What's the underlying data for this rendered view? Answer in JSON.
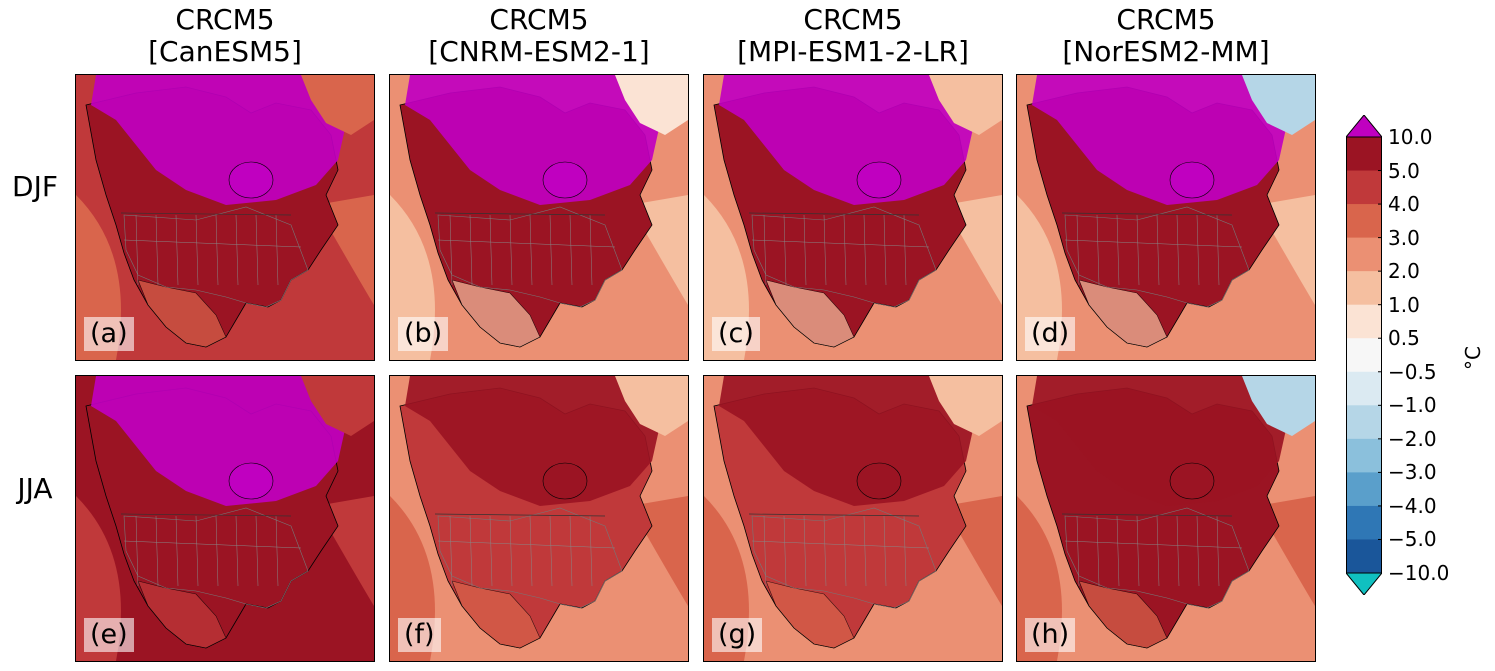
{
  "columns": [
    {
      "title_line1": "CRCM5",
      "title_line2": "[CanESM5]"
    },
    {
      "title_line1": "CRCM5",
      "title_line2": "[CNRM-ESM2-1]"
    },
    {
      "title_line1": "CRCM5",
      "title_line2": "[MPI-ESM1-2-LR]"
    },
    {
      "title_line1": "CRCM5",
      "title_line2": "[NorESM2-MM]"
    }
  ],
  "rows": [
    {
      "label": "DJF",
      "panel_labels": [
        "(a)",
        "(b)",
        "(c)",
        "(d)"
      ]
    },
    {
      "label": "JJA",
      "panel_labels": [
        "(e)",
        "(f)",
        "(g)",
        "(h)"
      ]
    }
  ],
  "colorbar": {
    "unit": "°C",
    "ticks": [
      "10.0",
      "5.0",
      "4.0",
      "3.0",
      "2.0",
      "1.0",
      "0.5",
      "−0.5",
      "−1.0",
      "−2.0",
      "−3.0",
      "−4.0",
      "−5.0",
      "−10.0"
    ],
    "colors": [
      "#9b1423",
      "#c0393a",
      "#d9654c",
      "#eb9073",
      "#f5bfa0",
      "#fbe3d4",
      "#f7f7f7",
      "#dbeaf2",
      "#b5d6e7",
      "#8bc0dc",
      "#5a9fcb",
      "#2f77b5",
      "#1a569a"
    ],
    "over_color": "#c000c0",
    "under_color": "#10c0c0"
  },
  "panel_fields": {
    "a": {
      "bg": "#c0393a",
      "land": "#9b1423",
      "north": "#c000c0",
      "ocean_ne": "#d9654c",
      "extra": "#d9654c"
    },
    "b": {
      "bg": "#eb9073",
      "land": "#9b1423",
      "north": "#c000c0",
      "ocean_ne": "#fbe3d4",
      "extra": "#f5bfa0"
    },
    "c": {
      "bg": "#eb9073",
      "land": "#9b1423",
      "north": "#c000c0",
      "ocean_ne": "#f5bfa0",
      "extra": "#f5bfa0"
    },
    "d": {
      "bg": "#eb9073",
      "land": "#9b1423",
      "north": "#c000c0",
      "ocean_ne": "#b5d6e7",
      "extra": "#f5bfa0"
    },
    "e": {
      "bg": "#9b1423",
      "land": "#9b1423",
      "north": "#c000c0",
      "ocean_ne": "#c0393a",
      "extra": "#c0393a"
    },
    "f": {
      "bg": "#eb9073",
      "land": "#c0393a",
      "north": "#9b1423",
      "ocean_ne": "#f5bfa0",
      "extra": "#d9654c"
    },
    "g": {
      "bg": "#eb9073",
      "land": "#c0393a",
      "north": "#9b1423",
      "ocean_ne": "#f5bfa0",
      "extra": "#d9654c"
    },
    "h": {
      "bg": "#eb9073",
      "land": "#9b1423",
      "north": "#9b1423",
      "ocean_ne": "#b5d6e7",
      "extra": "#d9654c"
    }
  }
}
